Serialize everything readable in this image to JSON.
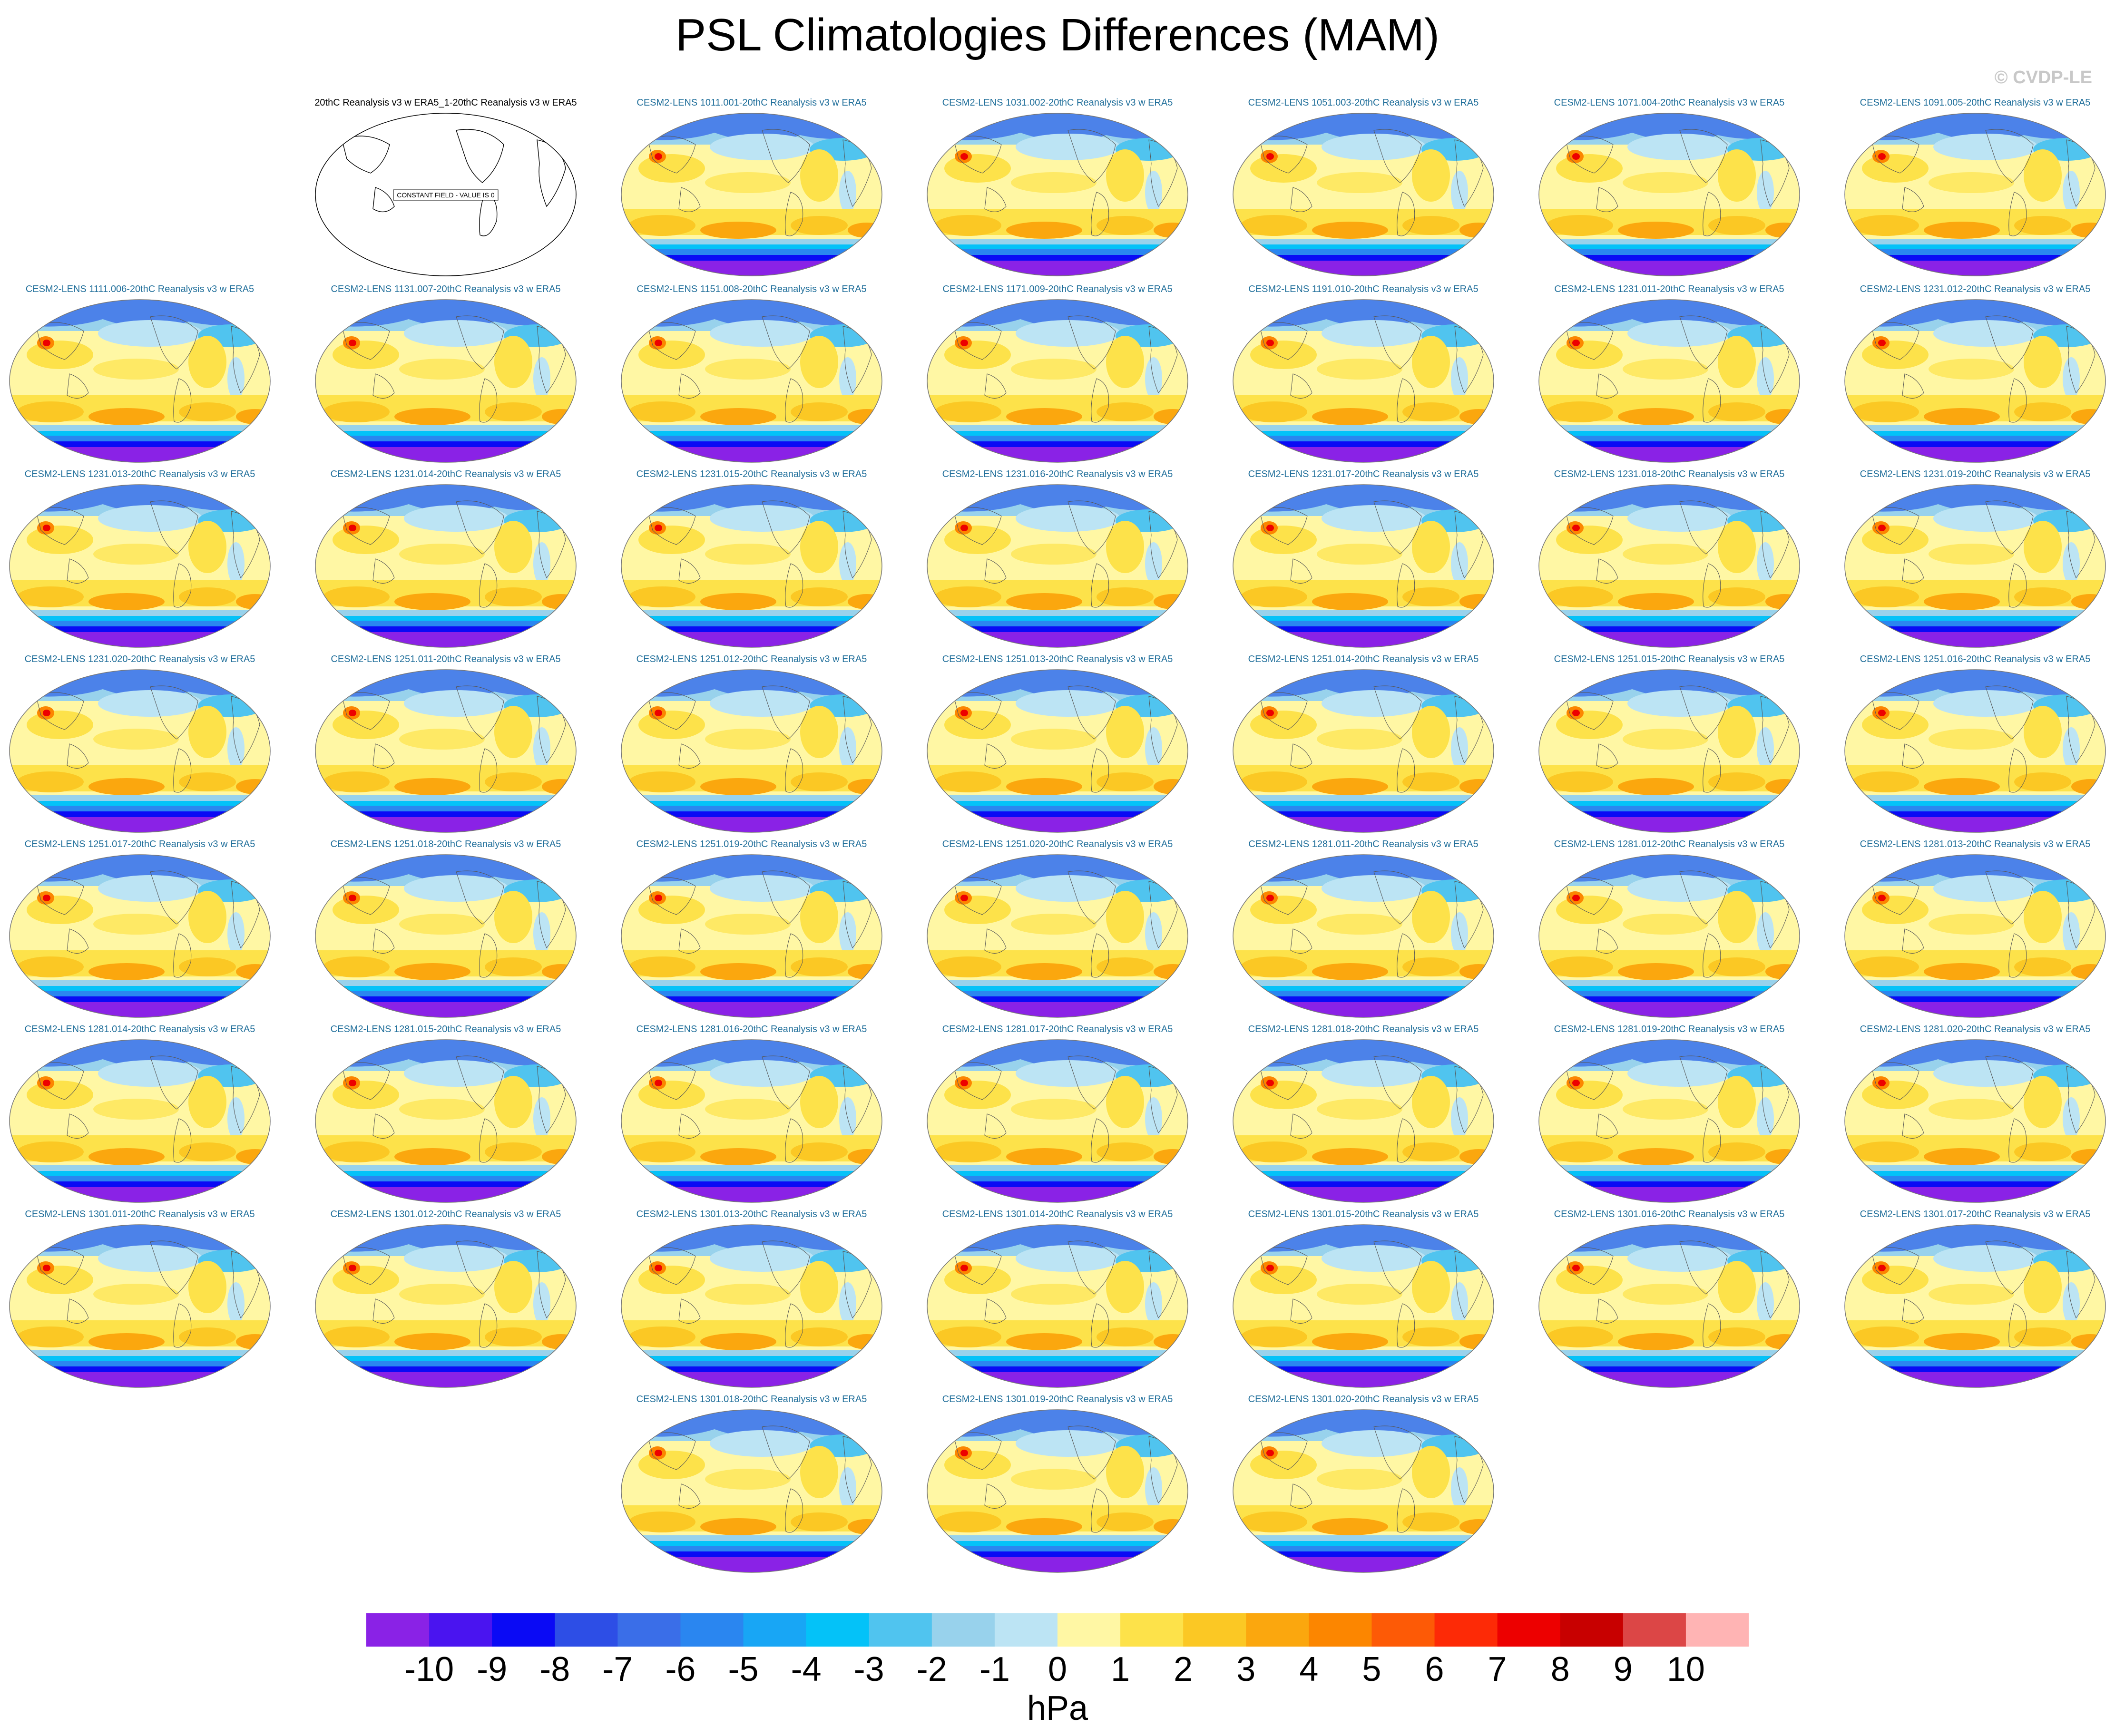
{
  "title": "PSL Climatologies Differences (MAM)",
  "copyright": "© CVDP-LE",
  "units": "hPa",
  "constant_field_note": "CONSTANT FIELD - VALUE IS 0",
  "observation_panel": {
    "label": "20thC Reanalysis v3 w ERA5_1-20thC Reanalysis v3 w ERA5"
  },
  "colorbar": {
    "colors": [
      "#8a22e6",
      "#4a14f0",
      "#0a0af5",
      "#2d4ee6",
      "#3a6ee8",
      "#2a86f0",
      "#18a6f5",
      "#04c2f8",
      "#50c4ef",
      "#98d2ec",
      "#bce4f4",
      "#fff7a4",
      "#fde24a",
      "#fbc824",
      "#fba70e",
      "#fc8600",
      "#fd5a06",
      "#fd2a06",
      "#ed0000",
      "#c80000",
      "#dc4646",
      "#ffb4b4"
    ],
    "tick_labels": [
      "-10",
      "-9",
      "-8",
      "-7",
      "-6",
      "-5",
      "-4",
      "-3",
      "-2",
      "-1",
      "0",
      "1",
      "2",
      "3",
      "4",
      "5",
      "6",
      "7",
      "8",
      "9",
      "10"
    ]
  },
  "panels": [
    "CESM2-LENS 1011.001-20thC Reanalysis v3 w ERA5",
    "CESM2-LENS 1031.002-20thC Reanalysis v3 w ERA5",
    "CESM2-LENS 1051.003-20thC Reanalysis v3 w ERA5",
    "CESM2-LENS 1071.004-20thC Reanalysis v3 w ERA5",
    "CESM2-LENS 1091.005-20thC Reanalysis v3 w ERA5",
    "CESM2-LENS 1111.006-20thC Reanalysis v3 w ERA5",
    "CESM2-LENS 1131.007-20thC Reanalysis v3 w ERA5",
    "CESM2-LENS 1151.008-20thC Reanalysis v3 w ERA5",
    "CESM2-LENS 1171.009-20thC Reanalysis v3 w ERA5",
    "CESM2-LENS 1191.010-20thC Reanalysis v3 w ERA5",
    "CESM2-LENS 1231.011-20thC Reanalysis v3 w ERA5",
    "CESM2-LENS 1231.012-20thC Reanalysis v3 w ERA5",
    "CESM2-LENS 1231.013-20thC Reanalysis v3 w ERA5",
    "CESM2-LENS 1231.014-20thC Reanalysis v3 w ERA5",
    "CESM2-LENS 1231.015-20thC Reanalysis v3 w ERA5",
    "CESM2-LENS 1231.016-20thC Reanalysis v3 w ERA5",
    "CESM2-LENS 1231.017-20thC Reanalysis v3 w ERA5",
    "CESM2-LENS 1231.018-20thC Reanalysis v3 w ERA5",
    "CESM2-LENS 1231.019-20thC Reanalysis v3 w ERA5",
    "CESM2-LENS 1231.020-20thC Reanalysis v3 w ERA5",
    "CESM2-LENS 1251.011-20thC Reanalysis v3 w ERA5",
    "CESM2-LENS 1251.012-20thC Reanalysis v3 w ERA5",
    "CESM2-LENS 1251.013-20thC Reanalysis v3 w ERA5",
    "CESM2-LENS 1251.014-20thC Reanalysis v3 w ERA5",
    "CESM2-LENS 1251.015-20thC Reanalysis v3 w ERA5",
    "CESM2-LENS 1251.016-20thC Reanalysis v3 w ERA5",
    "CESM2-LENS 1251.017-20thC Reanalysis v3 w ERA5",
    "CESM2-LENS 1251.018-20thC Reanalysis v3 w ERA5",
    "CESM2-LENS 1251.019-20thC Reanalysis v3 w ERA5",
    "CESM2-LENS 1251.020-20thC Reanalysis v3 w ERA5",
    "CESM2-LENS 1281.011-20thC Reanalysis v3 w ERA5",
    "CESM2-LENS 1281.012-20thC Reanalysis v3 w ERA5",
    "CESM2-LENS 1281.013-20thC Reanalysis v3 w ERA5",
    "CESM2-LENS 1281.014-20thC Reanalysis v3 w ERA5",
    "CESM2-LENS 1281.015-20thC Reanalysis v3 w ERA5",
    "CESM2-LENS 1281.016-20thC Reanalysis v3 w ERA5",
    "CESM2-LENS 1281.017-20thC Reanalysis v3 w ERA5",
    "CESM2-LENS 1281.018-20thC Reanalysis v3 w ERA5",
    "CESM2-LENS 1281.019-20thC Reanalysis v3 w ERA5",
    "CESM2-LENS 1281.020-20thC Reanalysis v3 w ERA5",
    "CESM2-LENS 1301.011-20thC Reanalysis v3 w ERA5",
    "CESM2-LENS 1301.012-20thC Reanalysis v3 w ERA5",
    "CESM2-LENS 1301.013-20thC Reanalysis v3 w ERA5",
    "CESM2-LENS 1301.014-20thC Reanalysis v3 w ERA5",
    "CESM2-LENS 1301.015-20thC Reanalysis v3 w ERA5",
    "CESM2-LENS 1301.016-20thC Reanalysis v3 w ERA5",
    "CESM2-LENS 1301.017-20thC Reanalysis v3 w ERA5",
    "CESM2-LENS 1301.018-20thC Reanalysis v3 w ERA5",
    "CESM2-LENS 1301.019-20thC Reanalysis v3 w ERA5",
    "CESM2-LENS 1301.020-20thC Reanalysis v3 w ERA5"
  ]
}
